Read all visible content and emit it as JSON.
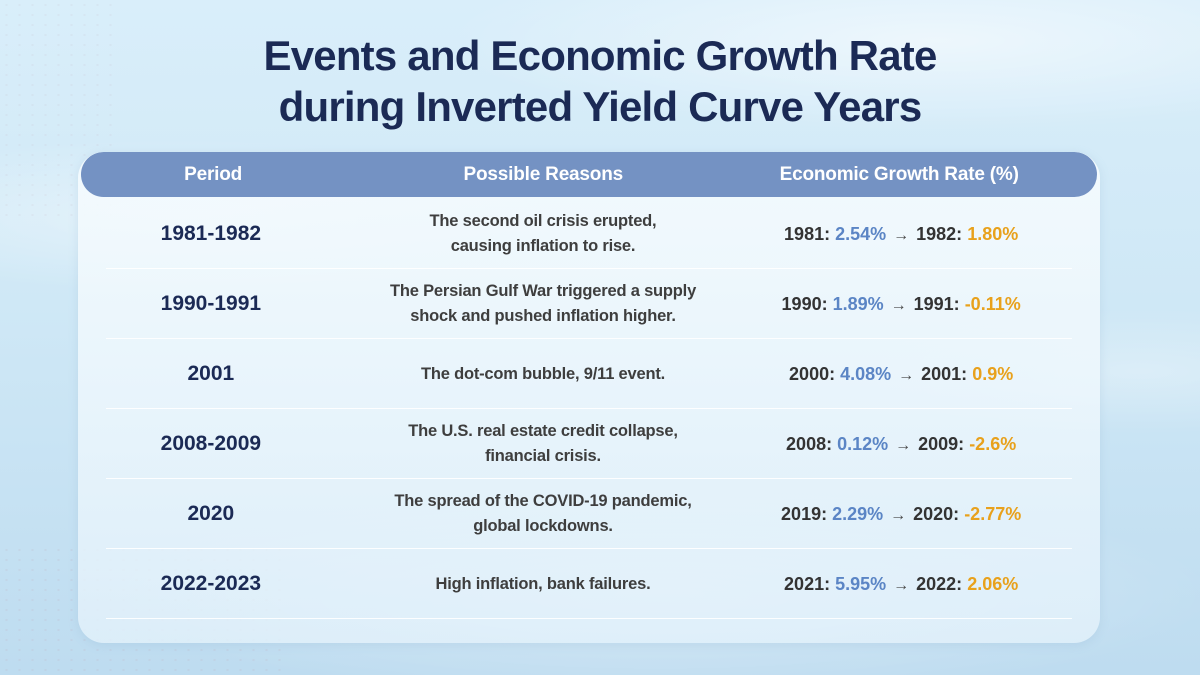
{
  "title": {
    "line1": "Events and Economic Growth Rate",
    "line2": "during Inverted Yield Curve Years"
  },
  "table": {
    "arrow": "→",
    "columns": {
      "period": "Period",
      "reasons": "Possible Reasons",
      "growth": "Economic Growth Rate (%)"
    },
    "rows": [
      {
        "period": "1981-1982",
        "reason": "The second oil crisis erupted,\ncausing inflation to rise.",
        "from_label": "1981:",
        "from_value": "2.54%",
        "to_label": "1982:",
        "to_value": "1.80%"
      },
      {
        "period": "1990-1991",
        "reason": "The Persian Gulf War triggered a supply\nshock and pushed inflation higher.",
        "from_label": "1990:",
        "from_value": "1.89%",
        "to_label": "1991:",
        "to_value": "-0.11%"
      },
      {
        "period": "2001",
        "reason": "The dot-com bubble, 9/11 event.",
        "from_label": "2000:",
        "from_value": "4.08%",
        "to_label": "2001:",
        "to_value": "0.9%"
      },
      {
        "period": "2008-2009",
        "reason": "The U.S. real estate credit collapse,\nfinancial crisis.",
        "from_label": "2008:",
        "from_value": "0.12%",
        "to_label": "2009:",
        "to_value": "-2.6%"
      },
      {
        "period": "2020",
        "reason": "The spread of the COVID-19 pandemic,\nglobal lockdowns.",
        "from_label": "2019:",
        "from_value": "2.29%",
        "to_label": "2020:",
        "to_value": "-2.77%"
      },
      {
        "period": "2022-2023",
        "reason": "High inflation, bank failures.",
        "from_label": "2021:",
        "from_value": "5.95%",
        "to_label": "2022:",
        "to_value": "2.06%"
      }
    ]
  },
  "colors": {
    "title_navy": "#1b2a55",
    "header_bar": "#7492c3",
    "header_text": "#ffffff",
    "value_blue": "#5b85c5",
    "value_orange": "#e8a11c",
    "sky_top": "#d9eefa",
    "sky_bottom": "#bedcf0"
  },
  "chart_data": {
    "type": "table",
    "title": "Events and Economic Growth Rate during Inverted Yield Curve Years",
    "columns": [
      "Period",
      "Possible Reasons",
      "Economic Growth Rate (%)"
    ],
    "rows": [
      [
        "1981-1982",
        "The second oil crisis erupted, causing inflation to rise.",
        "1981: 2.54% → 1982: 1.80%"
      ],
      [
        "1990-1991",
        "The Persian Gulf War triggered a supply shock and pushed inflation higher.",
        "1990: 1.89% → 1991: -0.11%"
      ],
      [
        "2001",
        "The dot-com bubble, 9/11 event.",
        "2000: 4.08% → 2001: 0.9%"
      ],
      [
        "2008-2009",
        "The U.S. real estate credit collapse, financial crisis.",
        "2008: 0.12% → 2009: -2.6%"
      ],
      [
        "2020",
        "The spread of the COVID-19 pandemic, global lockdowns.",
        "2019: 2.29% → 2020: -2.77%"
      ],
      [
        "2022-2023",
        "High inflation, bank failures.",
        "2021: 5.95% → 2022: 2.06%"
      ]
    ],
    "growth_rates": [
      {
        "from_year": 1981,
        "from_pct": 2.54,
        "to_year": 1982,
        "to_pct": 1.8
      },
      {
        "from_year": 1990,
        "from_pct": 1.89,
        "to_year": 1991,
        "to_pct": -0.11
      },
      {
        "from_year": 2000,
        "from_pct": 4.08,
        "to_year": 2001,
        "to_pct": 0.9
      },
      {
        "from_year": 2008,
        "from_pct": 0.12,
        "to_year": 2009,
        "to_pct": -2.6
      },
      {
        "from_year": 2019,
        "from_pct": 2.29,
        "to_year": 2020,
        "to_pct": -2.77
      },
      {
        "from_year": 2021,
        "from_pct": 5.95,
        "to_year": 2022,
        "to_pct": 2.06
      }
    ]
  }
}
